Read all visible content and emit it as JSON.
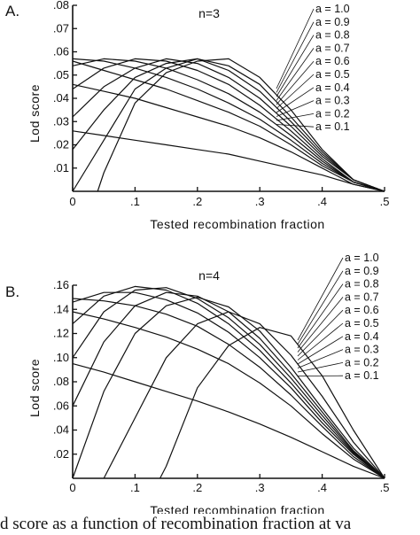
{
  "caption": "d score as a function of recombination fraction at va",
  "chart_data": [
    {
      "type": "line",
      "panel_label": "A.",
      "title": "n=3",
      "xlabel": "Tested recombination fraction",
      "ylabel": "Lod score",
      "xlim": [
        0,
        0.5
      ],
      "ylim": [
        0,
        0.08
      ],
      "x_ticks": [
        0,
        0.1,
        0.2,
        0.3,
        0.4,
        0.5
      ],
      "x_tick_labels": [
        "0",
        ".1",
        ".2",
        ".3",
        ".4",
        ".5"
      ],
      "y_ticks": [
        0.01,
        0.02,
        0.03,
        0.04,
        0.05,
        0.06,
        0.07,
        0.08
      ],
      "y_tick_labels": [
        ".01",
        ".02",
        ".03",
        ".04",
        ".05",
        ".06",
        ".07",
        ".08"
      ],
      "grid": false,
      "legend_placement": "right",
      "series": [
        {
          "name": "a = 1.0",
          "x": [
            0.04,
            0.05,
            0.1,
            0.15,
            0.2,
            0.25,
            0.3,
            0.35,
            0.4,
            0.45,
            0.5
          ],
          "y": [
            0.0,
            0.008,
            0.038,
            0.051,
            0.056,
            0.057,
            0.049,
            0.035,
            0.018,
            0.005,
            0.0
          ]
        },
        {
          "name": "a = 0.9",
          "x": [
            0.0,
            0.05,
            0.1,
            0.15,
            0.2,
            0.25,
            0.3,
            0.35,
            0.4,
            0.45,
            0.5
          ],
          "y": [
            0.0,
            0.022,
            0.044,
            0.053,
            0.057,
            0.054,
            0.046,
            0.032,
            0.017,
            0.005,
            0.0
          ]
        },
        {
          "name": "a = 0.8",
          "x": [
            0.0,
            0.05,
            0.1,
            0.15,
            0.2,
            0.25,
            0.3,
            0.35,
            0.4,
            0.45,
            0.5
          ],
          "y": [
            0.018,
            0.035,
            0.049,
            0.055,
            0.057,
            0.052,
            0.043,
            0.03,
            0.016,
            0.005,
            0.0
          ]
        },
        {
          "name": "a = 0.7",
          "x": [
            0.0,
            0.05,
            0.1,
            0.15,
            0.2,
            0.25,
            0.3,
            0.35,
            0.4,
            0.45,
            0.5
          ],
          "y": [
            0.032,
            0.045,
            0.053,
            0.057,
            0.055,
            0.049,
            0.04,
            0.028,
            0.015,
            0.005,
            0.0
          ]
        },
        {
          "name": "a = 0.6",
          "x": [
            0.0,
            0.05,
            0.1,
            0.15,
            0.2,
            0.25,
            0.3,
            0.35,
            0.4,
            0.45,
            0.5
          ],
          "y": [
            0.044,
            0.053,
            0.057,
            0.056,
            0.052,
            0.046,
            0.037,
            0.026,
            0.014,
            0.004,
            0.0
          ]
        },
        {
          "name": "a = 0.5",
          "x": [
            0.0,
            0.05,
            0.1,
            0.15,
            0.2,
            0.25,
            0.3,
            0.35,
            0.4,
            0.45,
            0.5
          ],
          "y": [
            0.054,
            0.057,
            0.056,
            0.053,
            0.048,
            0.042,
            0.034,
            0.024,
            0.013,
            0.004,
            0.0
          ]
        },
        {
          "name": "a = 0.4",
          "x": [
            0.0,
            0.05,
            0.1,
            0.15,
            0.2,
            0.25,
            0.3,
            0.35,
            0.4,
            0.45,
            0.5
          ],
          "y": [
            0.057,
            0.056,
            0.053,
            0.049,
            0.044,
            0.038,
            0.031,
            0.022,
            0.012,
            0.004,
            0.0
          ]
        },
        {
          "name": "a = 0.3",
          "x": [
            0.0,
            0.05,
            0.1,
            0.15,
            0.2,
            0.25,
            0.3,
            0.35,
            0.4,
            0.45,
            0.5
          ],
          "y": [
            0.056,
            0.052,
            0.048,
            0.044,
            0.039,
            0.034,
            0.028,
            0.02,
            0.011,
            0.004,
            0.0
          ]
        },
        {
          "name": "a = 0.2",
          "x": [
            0.0,
            0.05,
            0.1,
            0.15,
            0.2,
            0.25,
            0.3,
            0.35,
            0.4,
            0.45,
            0.5
          ],
          "y": [
            0.046,
            0.043,
            0.04,
            0.036,
            0.032,
            0.028,
            0.023,
            0.017,
            0.01,
            0.003,
            0.0
          ]
        },
        {
          "name": "a = 0.1",
          "x": [
            0.0,
            0.05,
            0.1,
            0.15,
            0.2,
            0.25,
            0.3,
            0.35,
            0.4,
            0.45,
            0.5
          ],
          "y": [
            0.026,
            0.024,
            0.022,
            0.02,
            0.018,
            0.016,
            0.013,
            0.01,
            0.007,
            0.003,
            0.0
          ]
        }
      ]
    },
    {
      "type": "line",
      "panel_label": "B.",
      "title": "n=4",
      "xlabel": "Tested recombination fraction",
      "ylabel": "Lod score",
      "xlim": [
        0,
        0.5
      ],
      "ylim": [
        0,
        0.16
      ],
      "x_ticks": [
        0,
        0.1,
        0.2,
        0.3,
        0.4,
        0.5
      ],
      "x_tick_labels": [
        "0",
        ".1",
        ".2",
        ".3",
        ".4",
        ".5"
      ],
      "y_ticks": [
        0.02,
        0.04,
        0.06,
        0.08,
        0.1,
        0.12,
        0.14,
        0.16
      ],
      "y_tick_labels": [
        ".02",
        ".04",
        ".06",
        ".08",
        ".10",
        ".12",
        ".14",
        ".16"
      ],
      "grid": false,
      "legend_placement": "right",
      "series": [
        {
          "name": "a = 1.0",
          "x": [
            0.14,
            0.15,
            0.2,
            0.25,
            0.3,
            0.35,
            0.4,
            0.45,
            0.5
          ],
          "y": [
            0.0,
            0.01,
            0.075,
            0.11,
            0.125,
            0.118,
            0.085,
            0.04,
            0.0
          ]
        },
        {
          "name": "a = 0.9",
          "x": [
            0.05,
            0.1,
            0.15,
            0.2,
            0.25,
            0.3,
            0.35,
            0.4,
            0.45,
            0.5
          ],
          "y": [
            0.0,
            0.05,
            0.1,
            0.128,
            0.138,
            0.128,
            0.102,
            0.068,
            0.03,
            0.0
          ]
        },
        {
          "name": "a = 0.8",
          "x": [
            0.0,
            0.05,
            0.1,
            0.15,
            0.2,
            0.25,
            0.3,
            0.35,
            0.4,
            0.45,
            0.5
          ],
          "y": [
            0.0,
            0.072,
            0.12,
            0.143,
            0.15,
            0.142,
            0.122,
            0.092,
            0.058,
            0.025,
            0.0
          ]
        },
        {
          "name": "a = 0.7",
          "x": [
            0.0,
            0.05,
            0.1,
            0.15,
            0.2,
            0.25,
            0.3,
            0.35,
            0.4,
            0.45,
            0.5
          ],
          "y": [
            0.06,
            0.113,
            0.143,
            0.154,
            0.151,
            0.138,
            0.116,
            0.087,
            0.055,
            0.023,
            0.0
          ]
        },
        {
          "name": "a = 0.6",
          "x": [
            0.0,
            0.05,
            0.1,
            0.15,
            0.2,
            0.25,
            0.3,
            0.35,
            0.4,
            0.45,
            0.5
          ],
          "y": [
            0.1,
            0.138,
            0.156,
            0.158,
            0.149,
            0.133,
            0.111,
            0.083,
            0.052,
            0.022,
            0.0
          ]
        },
        {
          "name": "a = 0.5",
          "x": [
            0.0,
            0.05,
            0.1,
            0.15,
            0.2,
            0.25,
            0.3,
            0.35,
            0.4,
            0.45,
            0.5
          ],
          "y": [
            0.128,
            0.151,
            0.159,
            0.156,
            0.145,
            0.128,
            0.106,
            0.079,
            0.049,
            0.021,
            0.0
          ]
        },
        {
          "name": "a = 0.4",
          "x": [
            0.0,
            0.05,
            0.1,
            0.15,
            0.2,
            0.25,
            0.3,
            0.35,
            0.4,
            0.45,
            0.5
          ],
          "y": [
            0.146,
            0.154,
            0.154,
            0.148,
            0.137,
            0.121,
            0.1,
            0.075,
            0.046,
            0.02,
            0.0
          ]
        },
        {
          "name": "a = 0.3",
          "x": [
            0.0,
            0.05,
            0.1,
            0.15,
            0.2,
            0.25,
            0.3,
            0.35,
            0.4,
            0.45,
            0.5
          ],
          "y": [
            0.149,
            0.147,
            0.143,
            0.136,
            0.126,
            0.111,
            0.092,
            0.069,
            0.043,
            0.018,
            0.0
          ]
        },
        {
          "name": "a = 0.2",
          "x": [
            0.0,
            0.05,
            0.1,
            0.15,
            0.2,
            0.25,
            0.3,
            0.35,
            0.4,
            0.45,
            0.5
          ],
          "y": [
            0.138,
            0.132,
            0.125,
            0.117,
            0.107,
            0.095,
            0.079,
            0.06,
            0.037,
            0.016,
            0.0
          ]
        },
        {
          "name": "a = 0.1",
          "x": [
            0.0,
            0.05,
            0.1,
            0.15,
            0.2,
            0.25,
            0.3,
            0.35,
            0.4,
            0.45,
            0.5
          ],
          "y": [
            0.095,
            0.088,
            0.08,
            0.072,
            0.064,
            0.055,
            0.045,
            0.034,
            0.022,
            0.01,
            0.0
          ]
        }
      ]
    }
  ]
}
